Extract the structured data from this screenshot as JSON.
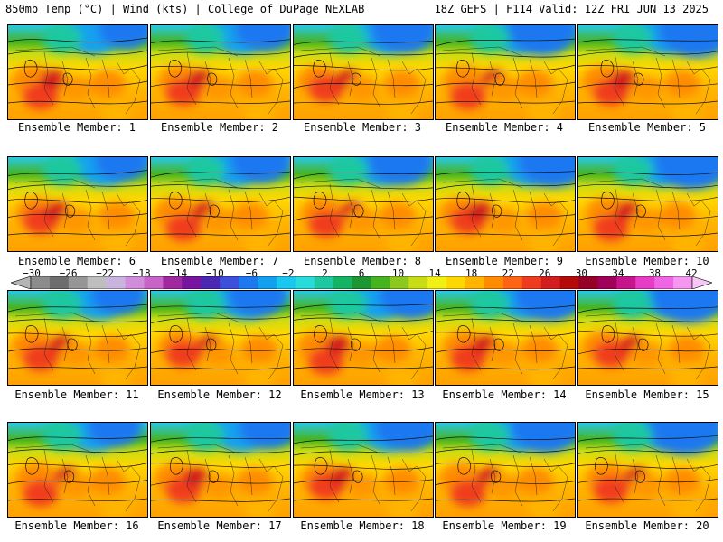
{
  "header": {
    "left": "850mb Temp (°C) | Wind (kts) | College of DuPage NEXLAB",
    "right": "18Z GEFS | F114 Valid: 12Z FRI JUN 13 2025"
  },
  "members": [
    {
      "label": "Ensemble Member: 1"
    },
    {
      "label": "Ensemble Member: 2"
    },
    {
      "label": "Ensemble Member: 3"
    },
    {
      "label": "Ensemble Member: 4"
    },
    {
      "label": "Ensemble Member: 5"
    },
    {
      "label": "Ensemble Member: 6"
    },
    {
      "label": "Ensemble Member: 7"
    },
    {
      "label": "Ensemble Member: 8"
    },
    {
      "label": "Ensemble Member: 9"
    },
    {
      "label": "Ensemble Member: 10"
    },
    {
      "label": "Ensemble Member: 11"
    },
    {
      "label": "Ensemble Member: 12"
    },
    {
      "label": "Ensemble Member: 13"
    },
    {
      "label": "Ensemble Member: 14"
    },
    {
      "label": "Ensemble Member: 15"
    },
    {
      "label": "Ensemble Member: 16"
    },
    {
      "label": "Ensemble Member: 17"
    },
    {
      "label": "Ensemble Member: 18"
    },
    {
      "label": "Ensemble Member: 19"
    },
    {
      "label": "Ensemble Member: 20"
    }
  ],
  "colorbar": {
    "ticks": [
      "−30",
      "−26",
      "−22",
      "−18",
      "−14",
      "−10",
      "−6",
      "−2",
      "2",
      "6",
      "10",
      "14",
      "18",
      "22",
      "26",
      "30",
      "34",
      "38",
      "42"
    ],
    "colors": [
      "#b4b4b4",
      "#8c8c8c",
      "#6e6e6e",
      "#969696",
      "#bebebe",
      "#c8b4dc",
      "#d28cdc",
      "#c864c8",
      "#a028a0",
      "#7814a0",
      "#4b28b4",
      "#3c50dc",
      "#1e78f0",
      "#14a0f0",
      "#19c8f0",
      "#28dcdc",
      "#1ec8a0",
      "#14b464",
      "#1e9632",
      "#46b41e",
      "#8cc81e",
      "#c8dc14",
      "#f0f014",
      "#ffd700",
      "#ffb400",
      "#ff8c00",
      "#ff6414",
      "#f03c1e",
      "#d21e1e",
      "#b40a0a",
      "#960028",
      "#a0005a",
      "#c8148c",
      "#e63cc8",
      "#f064e6",
      "#f596f0",
      "#f5c8f5"
    ]
  }
}
